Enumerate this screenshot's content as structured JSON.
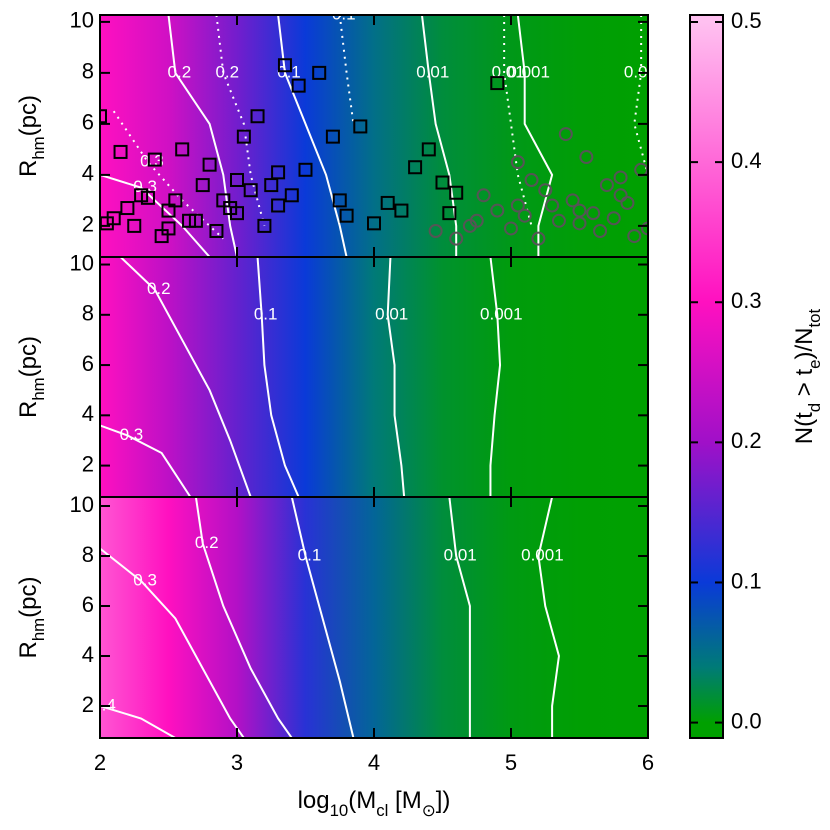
{
  "chart_data": [
    {
      "type": "contour-map",
      "ylabel": [
        {
          "text": "R"
        },
        {
          "text": "hm",
          "sub": true
        },
        {
          "text": "(pc)"
        }
      ],
      "ylim": [
        0.78,
        10.27
      ],
      "yticks": [
        2,
        4,
        6,
        8,
        10
      ],
      "field": {
        "x": [
          2,
          2.5,
          3,
          3.5,
          4,
          4.5,
          5,
          5.5,
          6
        ],
        "values": [
          0.3,
          0.25,
          0.17,
          0.1,
          0.05,
          0.02,
          0.008,
          0.002,
          0
        ]
      },
      "contours": [
        {
          "level": 0.3,
          "style": "solid",
          "x": [
            2.0,
            2.3,
            2.6,
            2.8
          ],
          "y": [
            4.0,
            3.5,
            2.0,
            0.78
          ]
        },
        {
          "level": 0.2,
          "style": "solid",
          "x": [
            2.5,
            2.55,
            2.8,
            2.9,
            2.95,
            3.0
          ],
          "y": [
            10.27,
            8,
            6,
            4,
            2,
            0.78
          ]
        },
        {
          "level": 0.1,
          "style": "solid",
          "x": [
            3.3,
            3.35,
            3.5,
            3.65,
            3.75,
            3.8
          ],
          "y": [
            10.27,
            8,
            6,
            4,
            2,
            0.78
          ]
        },
        {
          "level": 0.01,
          "style": "solid",
          "x": [
            4.35,
            4.4,
            4.45,
            4.55,
            4.6,
            4.6
          ],
          "y": [
            10.27,
            8,
            6,
            4,
            2,
            0.78
          ]
        },
        {
          "level": 0.001,
          "style": "solid",
          "x": [
            5.05,
            5.1,
            5.1,
            5.3,
            5.2,
            5.2
          ],
          "y": [
            10.27,
            8,
            6,
            4,
            2,
            0.78
          ]
        },
        {
          "level": 0.3,
          "style": "dotted",
          "x": [
            2.1,
            2.35,
            2.6,
            2.9
          ],
          "y": [
            6.5,
            4.5,
            3,
            1.5
          ]
        },
        {
          "level": 0.2,
          "style": "dotted",
          "x": [
            2.85,
            2.9,
            3.05,
            3.1,
            3.2
          ],
          "y": [
            10.27,
            8,
            6,
            4,
            2
          ]
        },
        {
          "level": 0.1,
          "style": "dotted",
          "x": [
            3.75,
            3.8,
            3.85
          ],
          "y": [
            10.27,
            8,
            6
          ]
        },
        {
          "level": 0.01,
          "style": "dotted",
          "x": [
            4.95,
            4.95,
            5.0,
            5.05,
            5.15
          ],
          "y": [
            10.27,
            8,
            6,
            4,
            2
          ]
        },
        {
          "level": 0.001,
          "style": "dotted",
          "x": [
            5.95,
            5.95,
            5.9,
            6.0
          ],
          "y": [
            10.27,
            8,
            6,
            4
          ]
        }
      ],
      "scatter": [
        {
          "marker": "square",
          "color": "#000000",
          "x": [
            2.0,
            2.1,
            2.15,
            2.25,
            2.3,
            2.4,
            2.45,
            2.5,
            2.55,
            2.6,
            2.7,
            2.75,
            2.8,
            2.85,
            2.9,
            3.0,
            3.05,
            3.1,
            3.15,
            3.2,
            3.25,
            3.3,
            3.35,
            3.4,
            3.45,
            3.5,
            3.6,
            3.7,
            3.75,
            3.8,
            3.9,
            4.0,
            4.1,
            4.2,
            4.3,
            4.4,
            4.5,
            4.55,
            4.6,
            4.9,
            2.2,
            2.35,
            2.65,
            3.0,
            3.3,
            2.05,
            2.5,
            2.95
          ],
          "y": [
            6.3,
            2.3,
            4.9,
            2.0,
            3.2,
            4.6,
            1.6,
            2.6,
            3.0,
            5.0,
            2.2,
            3.6,
            4.4,
            1.8,
            3.0,
            2.5,
            5.5,
            3.4,
            6.3,
            2.0,
            3.6,
            2.8,
            8.3,
            3.2,
            7.5,
            4.2,
            8.0,
            5.5,
            3.0,
            2.4,
            5.9,
            2.1,
            2.9,
            2.6,
            4.3,
            5.0,
            3.7,
            2.5,
            3.3,
            7.6,
            2.7,
            3.1,
            2.2,
            3.8,
            4.1,
            2.1,
            1.9,
            2.7
          ]
        },
        {
          "marker": "circle",
          "color": "#555555",
          "x": [
            4.45,
            4.6,
            4.75,
            4.8,
            4.9,
            5.0,
            5.05,
            5.1,
            5.15,
            5.2,
            5.3,
            5.35,
            5.4,
            5.45,
            5.5,
            5.55,
            5.6,
            5.65,
            5.7,
            5.75,
            5.8,
            5.85,
            5.9,
            5.95,
            4.7,
            5.25,
            5.5,
            5.8,
            6.0,
            5.05
          ],
          "y": [
            1.8,
            1.5,
            2.2,
            3.2,
            2.6,
            1.9,
            4.5,
            2.4,
            3.8,
            1.5,
            2.8,
            2.2,
            5.6,
            3.0,
            2.1,
            4.7,
            2.5,
            1.8,
            3.6,
            2.3,
            3.9,
            2.9,
            1.6,
            4.2,
            2.0,
            3.4,
            2.6,
            3.2,
            1.9,
            2.8
          ]
        }
      ]
    },
    {
      "type": "contour-map",
      "ylabel": [
        {
          "text": "R"
        },
        {
          "text": "hm",
          "sub": true
        },
        {
          "text": "(pc)"
        }
      ],
      "ylim": [
        0.75,
        10.3
      ],
      "yticks": [
        2,
        4,
        6,
        8,
        10
      ],
      "field": {
        "x": [
          2,
          2.5,
          3,
          3.5,
          4,
          4.5,
          5,
          5.5,
          6
        ],
        "values": [
          0.3,
          0.23,
          0.16,
          0.1,
          0.04,
          0.015,
          0.004,
          0.001,
          0
        ]
      },
      "contours": [
        {
          "level": 0.3,
          "style": "solid",
          "x": [
            2.0,
            2.2,
            2.45,
            2.66
          ],
          "y": [
            3.6,
            3.2,
            2.5,
            0.75
          ]
        },
        {
          "level": 0.2,
          "style": "solid",
          "x": [
            2.15,
            2.4,
            2.6,
            2.8,
            2.95,
            3.1
          ],
          "y": [
            10.3,
            9.0,
            7.0,
            5.0,
            3.0,
            0.75
          ]
        },
        {
          "level": 0.1,
          "style": "solid",
          "x": [
            3.15,
            3.18,
            3.2,
            3.25,
            3.35,
            3.45
          ],
          "y": [
            10.3,
            8,
            6,
            4,
            2,
            0.75
          ]
        },
        {
          "level": 0.01,
          "style": "solid",
          "x": [
            4.12,
            4.1,
            4.15,
            4.15,
            4.2,
            4.22
          ],
          "y": [
            10.3,
            8,
            6,
            4,
            2,
            0.75
          ]
        },
        {
          "level": 0.001,
          "style": "solid",
          "x": [
            4.85,
            4.9,
            4.92,
            4.88,
            4.85,
            4.85
          ],
          "y": [
            10.3,
            8,
            6,
            4,
            2,
            0.75
          ]
        }
      ]
    },
    {
      "type": "contour-map",
      "ylabel": [
        {
          "text": "R"
        },
        {
          "text": "hm",
          "sub": true
        },
        {
          "text": "(pc)"
        }
      ],
      "xlabel": [
        {
          "text": "log"
        },
        {
          "text": "10",
          "sub": true
        },
        {
          "text": "(M"
        },
        {
          "text": "cl",
          "sub": true
        },
        {
          "text": " [M"
        },
        {
          "text": "⊙",
          "sub": true
        },
        {
          "text": "])"
        }
      ],
      "xlim": [
        2,
        6
      ],
      "xticks": [
        2,
        3,
        4,
        5,
        6
      ],
      "ylim": [
        0.72,
        10.36
      ],
      "yticks": [
        2,
        4,
        6,
        8,
        10
      ],
      "field": {
        "x": [
          2,
          2.5,
          3,
          3.5,
          4,
          4.5,
          5,
          5.5,
          6
        ],
        "values": [
          0.38,
          0.3,
          0.22,
          0.12,
          0.06,
          0.02,
          0.006,
          0.001,
          0
        ]
      },
      "contours": [
        {
          "level": 0.4,
          "style": "solid",
          "x": [
            2.0,
            2.3,
            2.55
          ],
          "y": [
            2.0,
            1.5,
            0.72
          ]
        },
        {
          "level": 0.3,
          "style": "solid",
          "x": [
            2.0,
            2.3,
            2.55,
            2.8,
            2.95,
            3.05
          ],
          "y": [
            8.3,
            7,
            5.5,
            3,
            1.5,
            0.72
          ]
        },
        {
          "level": 0.2,
          "style": "solid",
          "x": [
            2.7,
            2.75,
            2.9,
            3.1,
            3.3,
            3.4
          ],
          "y": [
            10.36,
            8.5,
            6,
            3.5,
            1.5,
            0.72
          ]
        },
        {
          "level": 0.1,
          "style": "solid",
          "x": [
            3.4,
            3.5,
            3.65,
            3.75,
            3.85
          ],
          "y": [
            10.36,
            8,
            5,
            3,
            0.72
          ]
        },
        {
          "level": 0.01,
          "style": "solid",
          "x": [
            4.55,
            4.6,
            4.7,
            4.7,
            4.7,
            4.7
          ],
          "y": [
            10.36,
            8,
            6,
            4,
            2,
            0.72
          ]
        },
        {
          "level": 0.001,
          "style": "solid",
          "x": [
            5.3,
            5.2,
            5.25,
            5.35,
            5.3,
            5.3
          ],
          "y": [
            10.36,
            8,
            6,
            4,
            2,
            0.72
          ]
        }
      ]
    },
    {
      "type": "colorbar",
      "label": [
        {
          "text": "N(t"
        },
        {
          "text": "d",
          "sub": true
        },
        {
          "text": " > t"
        },
        {
          "text": "e",
          "sub": true
        },
        {
          "text": ")/N"
        },
        {
          "text": "tot",
          "sub": true
        }
      ],
      "ylim": [
        -0.011,
        0.505
      ],
      "yticks": [
        {
          "value": 0,
          "label": "0.0"
        },
        0.1,
        0.2,
        0.3,
        0.4,
        0.5
      ],
      "colormap": {
        "values": [
          0,
          0.04,
          0.1,
          0.2,
          0.3,
          0.5
        ],
        "colors": [
          "#00a000",
          "#007a78",
          "#0a3ad8",
          "#a010c8",
          "#ff10c0",
          "#ffc0f0"
        ]
      }
    }
  ]
}
